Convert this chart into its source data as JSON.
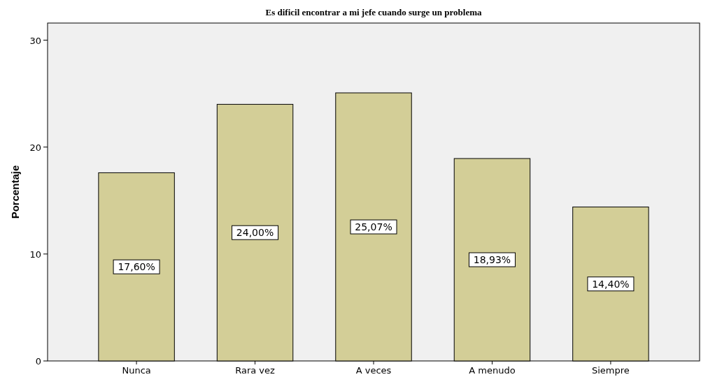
{
  "chart_data": {
    "type": "bar",
    "title": "Es dificil encontrar a mi jefe cuando surge un problema",
    "ylabel": "Porcentaje",
    "categories": [
      "Nunca",
      "Rara vez",
      "A veces",
      "A menudo",
      "Siempre"
    ],
    "values": [
      17.6,
      24.0,
      25.07,
      18.93,
      14.4
    ],
    "value_labels": [
      "17,60%",
      "24,00%",
      "25,07%",
      "18,93%",
      "14,40%"
    ],
    "color": "#d3ce97",
    "ylim": [
      0,
      31.6
    ],
    "yticks": [
      0,
      10,
      20,
      30
    ]
  }
}
